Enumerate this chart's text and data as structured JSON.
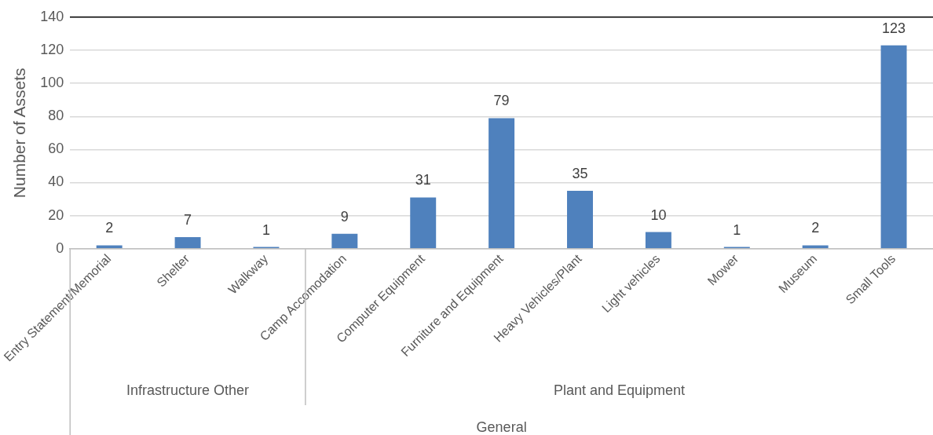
{
  "chart_data": {
    "type": "bar",
    "ylabel": "Number of Assets",
    "categories": [
      "Entry Statement/Memorial",
      "Shelter",
      "Walkway",
      "Camp Accomodation",
      "Computer Equipment",
      "Furniture and Equipment",
      "Heavy Vehicles/Plant",
      "Light vehicles",
      "Mower",
      "Museum",
      "Small Tools"
    ],
    "values": [
      2,
      7,
      1,
      9,
      31,
      79,
      35,
      10,
      1,
      2,
      123
    ],
    "color": "#4f81bd",
    "ylim": [
      0,
      140
    ],
    "yticks": [
      0,
      20,
      40,
      60,
      80,
      100,
      120,
      140
    ],
    "grid": "y",
    "data_labels": true,
    "legend": false,
    "annotations": [
      "Infrastructure Other",
      "Plant and Equipment",
      "General"
    ]
  }
}
